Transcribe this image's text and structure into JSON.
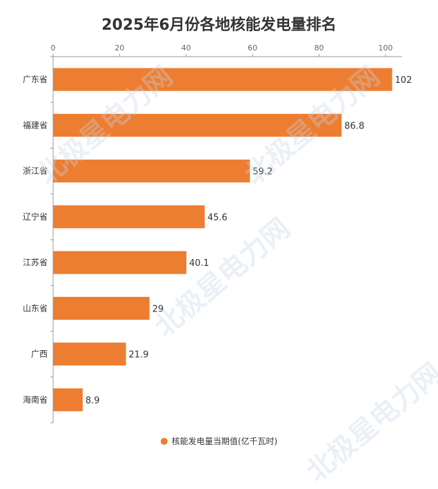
{
  "chart_data": {
    "type": "bar",
    "orientation": "horizontal",
    "title": "2025年6月份各地核能发电量排名",
    "categories": [
      "广东省",
      "福建省",
      "浙江省",
      "辽宁省",
      "江苏省",
      "山东省",
      "广西",
      "海南省"
    ],
    "series": [
      {
        "name": "核能发电量当期值(亿千瓦时)",
        "values": [
          102,
          86.8,
          59.2,
          45.6,
          40.1,
          29,
          21.9,
          8.9
        ],
        "value_labels": [
          "102",
          "86.8",
          "59.2",
          "45.6",
          "40.1",
          "29",
          "21.9",
          "8.9"
        ],
        "color": "#ed7d31"
      }
    ],
    "xlim": [
      0,
      105
    ],
    "xticks": [
      0,
      20,
      40,
      60,
      80,
      100
    ],
    "axis_position": "top",
    "legend_position": "bottom",
    "grid": false
  },
  "watermark": {
    "text": "北极星电力网",
    "color": "#c8d5e6"
  }
}
